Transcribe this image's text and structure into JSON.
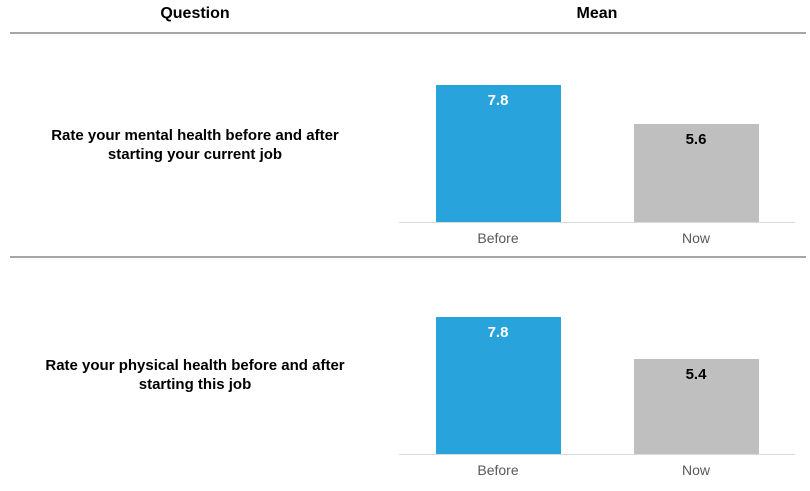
{
  "header": {
    "question_label": "Question",
    "mean_label": "Mean"
  },
  "colors": {
    "before_bar": "#29A3DC",
    "now_bar": "#BFBFBF",
    "value_on_before": "#FFFFFF",
    "value_on_now": "#000000",
    "category_label": "#595959",
    "divider": "#A6A6A6",
    "axis_line": "#D9D9D9",
    "header_text": "#000000"
  },
  "chart_data": [
    {
      "type": "bar",
      "title": "Rate your mental health before and after starting your current job",
      "categories": [
        "Before",
        "Now"
      ],
      "values": [
        7.8,
        5.6
      ],
      "data_labels": [
        "7.8",
        "5.6"
      ],
      "bar_colors": [
        "#29A3DC",
        "#BFBFBF"
      ],
      "xlabel": "",
      "ylabel": "Mean",
      "ylim": [
        0,
        8
      ],
      "grid": false,
      "legend": "none"
    },
    {
      "type": "bar",
      "title": "Rate your physical health before and after starting this job",
      "categories": [
        "Before",
        "Now"
      ],
      "values": [
        7.8,
        5.4
      ],
      "data_labels": [
        "7.8",
        "5.4"
      ],
      "bar_colors": [
        "#29A3DC",
        "#BFBFBF"
      ],
      "xlabel": "",
      "ylabel": "Mean",
      "ylim": [
        0,
        8
      ],
      "grid": false,
      "legend": "none"
    }
  ]
}
